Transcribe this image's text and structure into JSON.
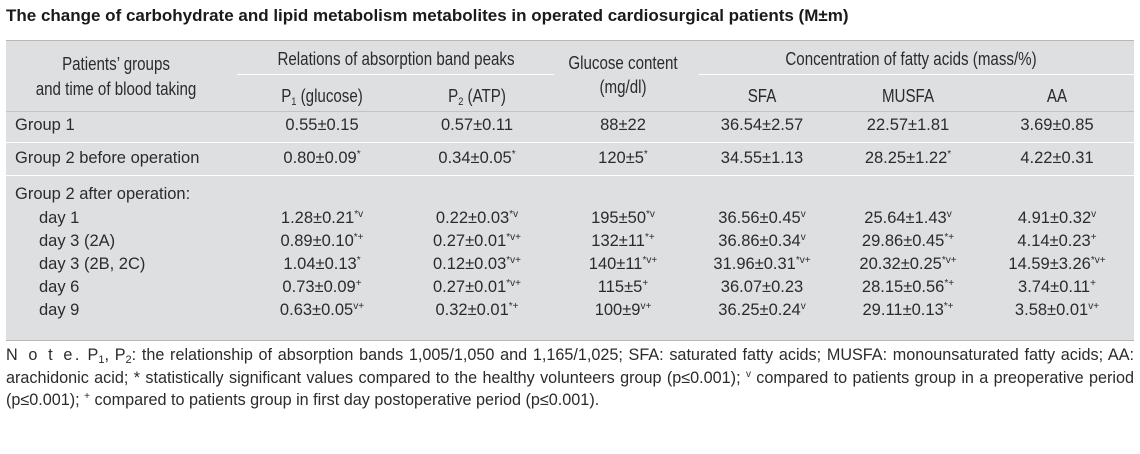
{
  "title": "The change of carbohydrate and lipid metabolism metabolites in operated cardiosurgical patients (M±m)",
  "header": {
    "groups_line1": "Patients’ groups",
    "groups_line2": "and time of blood taking",
    "relations": "Relations of absorption band peaks",
    "p1_main": "P",
    "p1_sub": "1",
    "p1_tail": " (glucose)",
    "p2_main": "P",
    "p2_sub": "2",
    "p2_tail": " (ATP)",
    "glucose_line1": "Glucose content",
    "glucose_line2": "(mg/dl)",
    "fatty": "Concentration of fatty acids (mass/%)",
    "sfa": "SFA",
    "musfa": "MUSFA",
    "aa": "AA"
  },
  "rows": [
    {
      "label": "Group 1",
      "p1": "0.55±0.15",
      "p1s": "",
      "p2": "0.57±0.11",
      "p2s": "",
      "glu": "88±22",
      "glus": "",
      "sfa": "36.54±2.57",
      "sfas": "",
      "musfa": "22.57±1.81",
      "musfas": "",
      "aa": "3.69±0.85",
      "aas": ""
    },
    {
      "label": "Group 2 before operation",
      "p1": "0.80±0.09",
      "p1s": "*",
      "p2": "0.34±0.05",
      "p2s": "*",
      "glu": "120±5",
      "glus": "*",
      "sfa": "34.55±1.13",
      "sfas": "",
      "musfa": "28.25±1.22",
      "musfas": "*",
      "aa": "4.22±0.31",
      "aas": ""
    },
    {
      "label": "Group 2 after operation:",
      "p1": "",
      "p1s": "",
      "p2": "",
      "p2s": "",
      "glu": "",
      "glus": "",
      "sfa": "",
      "sfas": "",
      "musfa": "",
      "musfas": "",
      "aa": "",
      "aas": ""
    },
    {
      "label": "day 1",
      "p1": "1.28±0.21",
      "p1s": "*v",
      "p2": "0.22±0.03",
      "p2s": "*v",
      "glu": "195±50",
      "glus": "*v",
      "sfa": "36.56±0.45",
      "sfas": "v",
      "musfa": "25.64±1.43",
      "musfas": "v",
      "aa": "4.91±0.32",
      "aas": "v"
    },
    {
      "label": "day 3 (2A)",
      "p1": "0.89±0.10",
      "p1s": "*+",
      "p2": "0.27±0.01",
      "p2s": "*v+",
      "glu": "132±11",
      "glus": "*+",
      "sfa": "36.86±0.34",
      "sfas": "v",
      "musfa": "29.86±0.45",
      "musfas": "*+",
      "aa": "4.14±0.23",
      "aas": "+"
    },
    {
      "label": "day 3 (2B, 2C)",
      "p1": "1.04±0.13",
      "p1s": "*",
      "p2": "0.12±0.03",
      "p2s": "*v+",
      "glu": "140±11",
      "glus": "*v+",
      "sfa": "31.96±0.31",
      "sfas": "*v+",
      "musfa": "20.32±0.25",
      "musfas": "*v+",
      "aa": "14.59±3.26",
      "aas": "*v+"
    },
    {
      "label": "day 6",
      "p1": "0.73±0.09",
      "p1s": "+",
      "p2": "0.27±0.01",
      "p2s": "*v+",
      "glu": "115±5",
      "glus": "+",
      "sfa": "36.07±0.23",
      "sfas": "",
      "musfa": "28.15±0.56",
      "musfas": "*+",
      "aa": "3.74±0.11",
      "aas": "+"
    },
    {
      "label": "day 9",
      "p1": "0.63±0.05",
      "p1s": "v+",
      "p2": "0.32±0.01",
      "p2s": "*+",
      "glu": "100±9",
      "glus": "v+",
      "sfa": "36.25±0.24",
      "sfas": "v",
      "musfa": "29.11±0.13",
      "musfas": "*+",
      "aa": "3.58±0.01",
      "aas": "v+"
    }
  ],
  "note": {
    "lead": "N o t e.",
    "p1": "P",
    "p1sub": "1",
    "comma": ", ",
    "p2": "P",
    "p2sub": "2",
    "part1": ": the relationship of absorption bands 1,005/1,050 and 1,165/1,025; SFA: saturated fatty acids; MUSFA: monounsaturated fatty acids; AA: arachidonic acid; * statistically significant values compared to the healthy volunteers group (p≤0.001); ",
    "sup_v": "v",
    "part2": " compared to patients group in a preoperative period (p≤0.001); ",
    "sup_plus": "+",
    "part3": " compared to patients group in first day postoperative period (p≤0.001)."
  }
}
